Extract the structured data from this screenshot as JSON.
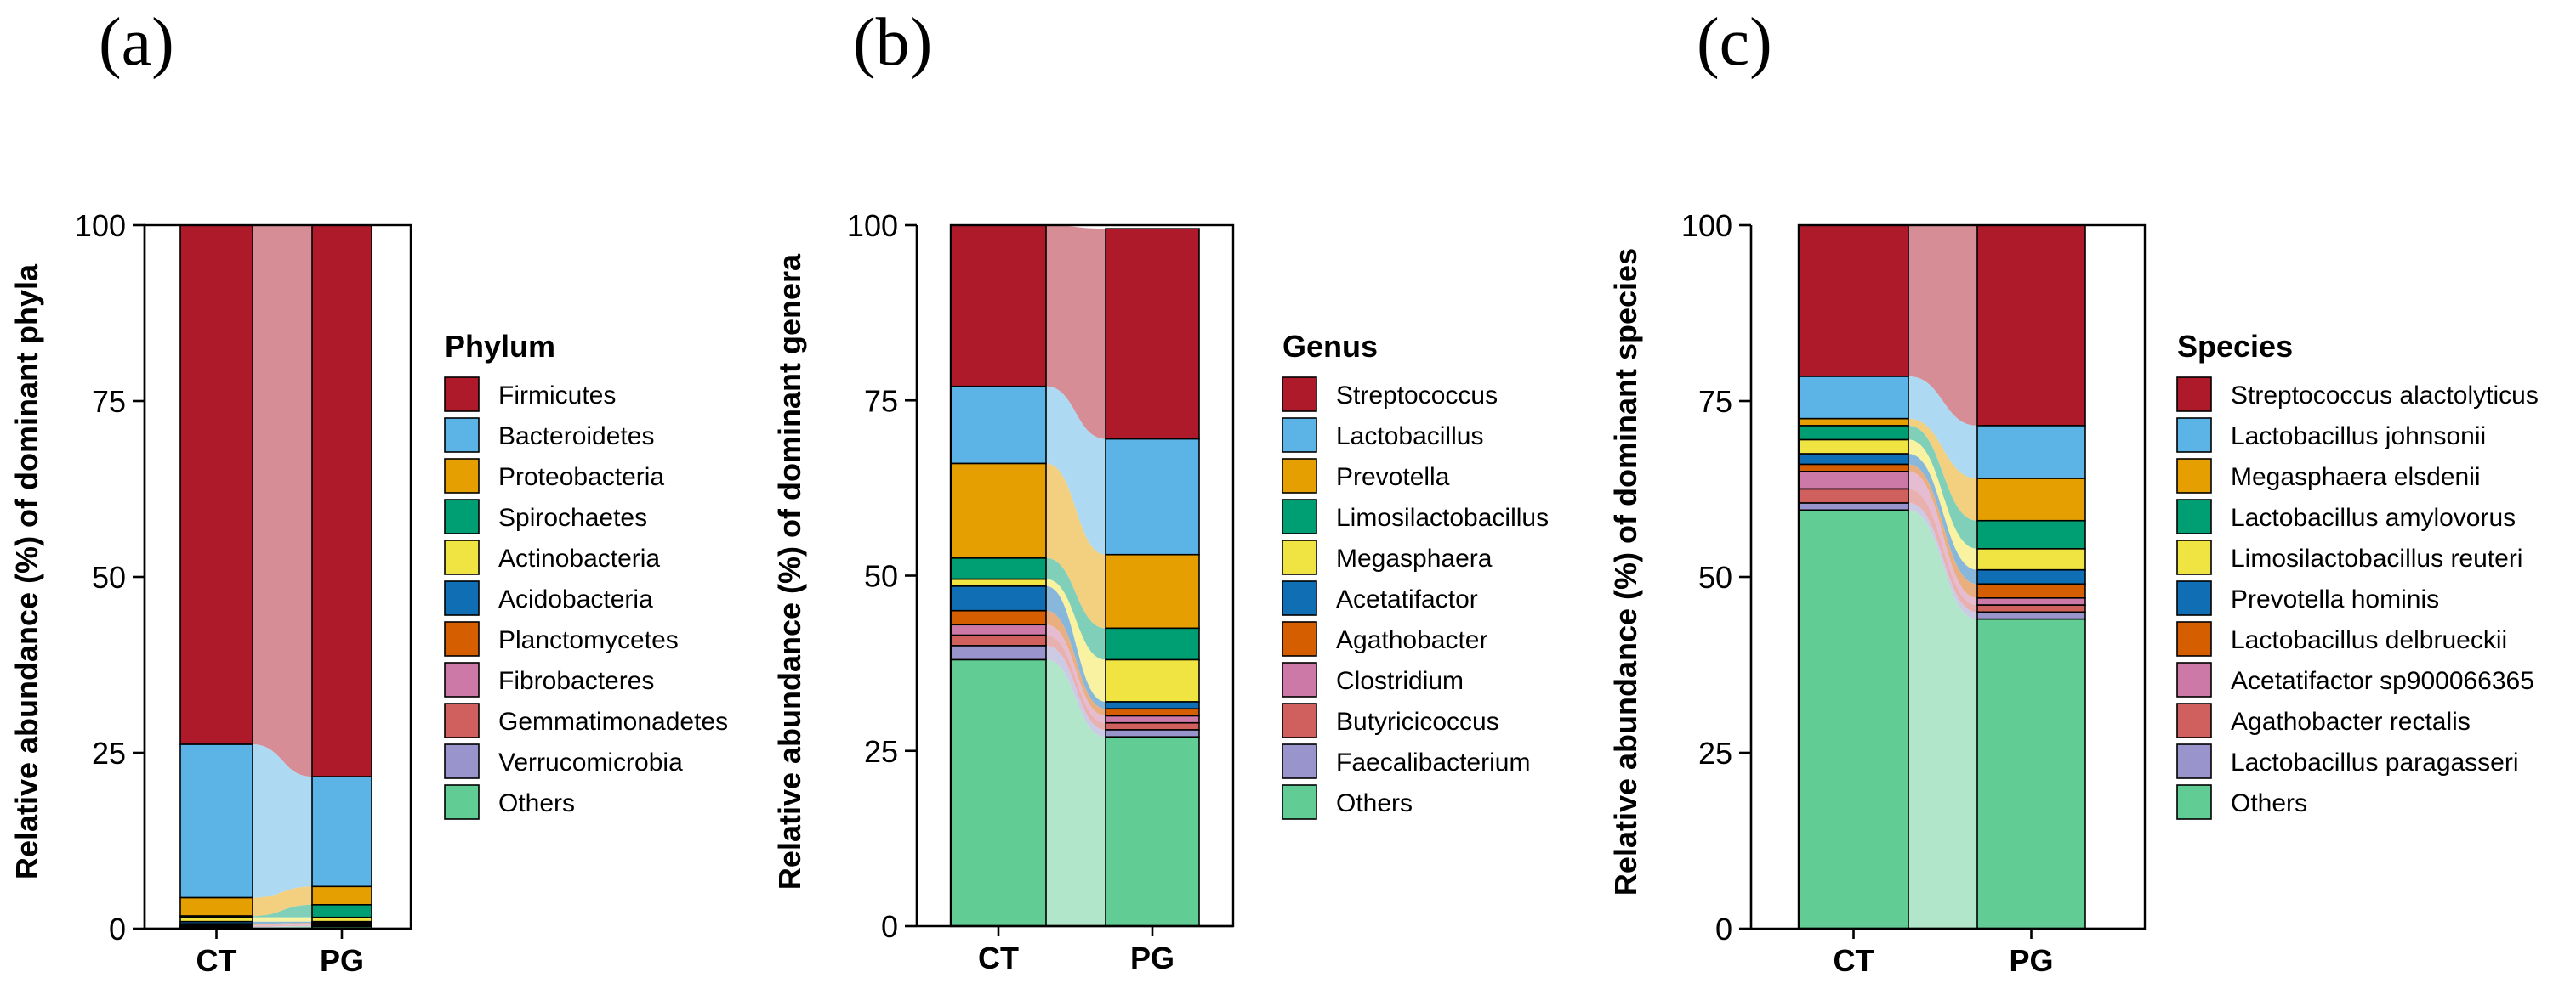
{
  "chart_data": [
    {
      "type": "bar",
      "panel_label": "(a)",
      "ylabel": "Relative abundance (%) of dominant phyla",
      "legend_title": "Phylum",
      "ylim": [
        0,
        100
      ],
      "yticks": [
        "0",
        "25",
        "50",
        "75",
        "100"
      ],
      "categories": [
        "CT",
        "PG"
      ],
      "series": [
        {
          "name": "Firmicutes",
          "color": "#AE1A2A",
          "values": [
            73.8,
            78.4
          ]
        },
        {
          "name": "Bacteroidetes",
          "color": "#5BB4E5",
          "values": [
            21.8,
            15.6
          ]
        },
        {
          "name": "Proteobacteria",
          "color": "#E69F00",
          "values": [
            2.6,
            2.6
          ]
        },
        {
          "name": "Spirochaetes",
          "color": "#009E73",
          "values": [
            0.2,
            1.8
          ]
        },
        {
          "name": "Actinobacteria",
          "color": "#F0E442",
          "values": [
            0.6,
            0.6
          ]
        },
        {
          "name": "Acidobacteria",
          "color": "#0F6EB4",
          "values": [
            0.3,
            0.2
          ]
        },
        {
          "name": "Planctomycetes",
          "color": "#D55E00",
          "values": [
            0.2,
            0.2
          ]
        },
        {
          "name": "Fibrobacteres",
          "color": "#CC79A7",
          "values": [
            0.1,
            0.1
          ]
        },
        {
          "name": "Gemmatimonadetes",
          "color": "#D0605E",
          "values": [
            0.1,
            0.1
          ]
        },
        {
          "name": "Verrucomicrobia",
          "color": "#9A94CC",
          "values": [
            0.1,
            0.1
          ]
        },
        {
          "name": "Others",
          "color": "#62CC95",
          "values": [
            0.2,
            0.3
          ]
        }
      ]
    },
    {
      "type": "bar",
      "panel_label": "(b)",
      "ylabel": "Relative abundance (%) of dominant genera",
      "legend_title": "Genus",
      "ylim": [
        0,
        100
      ],
      "yticks": [
        "0",
        "25",
        "50",
        "75",
        "100"
      ],
      "categories": [
        "CT",
        "PG"
      ],
      "series": [
        {
          "name": "Streptococcus",
          "color": "#AE1A2A",
          "values": [
            23.0,
            30.0
          ]
        },
        {
          "name": "Lactobacillus",
          "color": "#5BB4E5",
          "values": [
            11.0,
            16.5
          ]
        },
        {
          "name": "Prevotella",
          "color": "#E69F00",
          "values": [
            13.5,
            10.5
          ]
        },
        {
          "name": "Limosilactobacillus",
          "color": "#009E73",
          "values": [
            3.0,
            4.5
          ]
        },
        {
          "name": "Megasphaera",
          "color": "#F0E442",
          "values": [
            1.0,
            6.0
          ]
        },
        {
          "name": "Acetatifactor",
          "color": "#0F6EB4",
          "values": [
            3.5,
            1.0
          ]
        },
        {
          "name": "Agathobacter",
          "color": "#D55E00",
          "values": [
            2.0,
            1.0
          ]
        },
        {
          "name": "Clostridium",
          "color": "#CC79A7",
          "values": [
            1.5,
            1.0
          ]
        },
        {
          "name": "Butyricicoccus",
          "color": "#D0605E",
          "values": [
            1.5,
            1.0
          ]
        },
        {
          "name": "Faecalibacterium",
          "color": "#9A94CC",
          "values": [
            2.0,
            1.0
          ]
        },
        {
          "name": "Others",
          "color": "#62CC95",
          "values": [
            38.0,
            27.0
          ]
        }
      ]
    },
    {
      "type": "bar",
      "panel_label": "(c)",
      "ylabel": "Relative abundance (%) of dominant species",
      "legend_title": "Species",
      "ylim": [
        0,
        100
      ],
      "yticks": [
        "0",
        "25",
        "50",
        "75",
        "100"
      ],
      "categories": [
        "CT",
        "PG"
      ],
      "series": [
        {
          "name": "Streptococcus alactolyticus",
          "color": "#AE1A2A",
          "values": [
            21.5,
            28.5
          ]
        },
        {
          "name": "Lactobacillus johnsonii",
          "color": "#5BB4E5",
          "values": [
            6.0,
            7.5
          ]
        },
        {
          "name": "Megasphaera elsdenii",
          "color": "#E69F00",
          "values": [
            1.0,
            6.0
          ]
        },
        {
          "name": "Lactobacillus amylovorus",
          "color": "#009E73",
          "values": [
            2.0,
            4.0
          ]
        },
        {
          "name": "Limosilactobacillus reuteri",
          "color": "#F0E442",
          "values": [
            2.0,
            3.0
          ]
        },
        {
          "name": "Prevotella hominis",
          "color": "#0F6EB4",
          "values": [
            1.5,
            2.0
          ]
        },
        {
          "name": "Lactobacillus delbrueckii",
          "color": "#D55E00",
          "values": [
            1.0,
            2.0
          ]
        },
        {
          "name": "Acetatifactor sp900066365",
          "color": "#CC79A7",
          "values": [
            2.5,
            1.0
          ]
        },
        {
          "name": "Agathobacter rectalis",
          "color": "#D0605E",
          "values": [
            2.0,
            1.0
          ]
        },
        {
          "name": "Lactobacillus paragasseri",
          "color": "#9A94CC",
          "values": [
            1.0,
            1.0
          ]
        },
        {
          "name": "Others",
          "color": "#62CC95",
          "values": [
            59.5,
            44.0
          ]
        }
      ]
    }
  ]
}
